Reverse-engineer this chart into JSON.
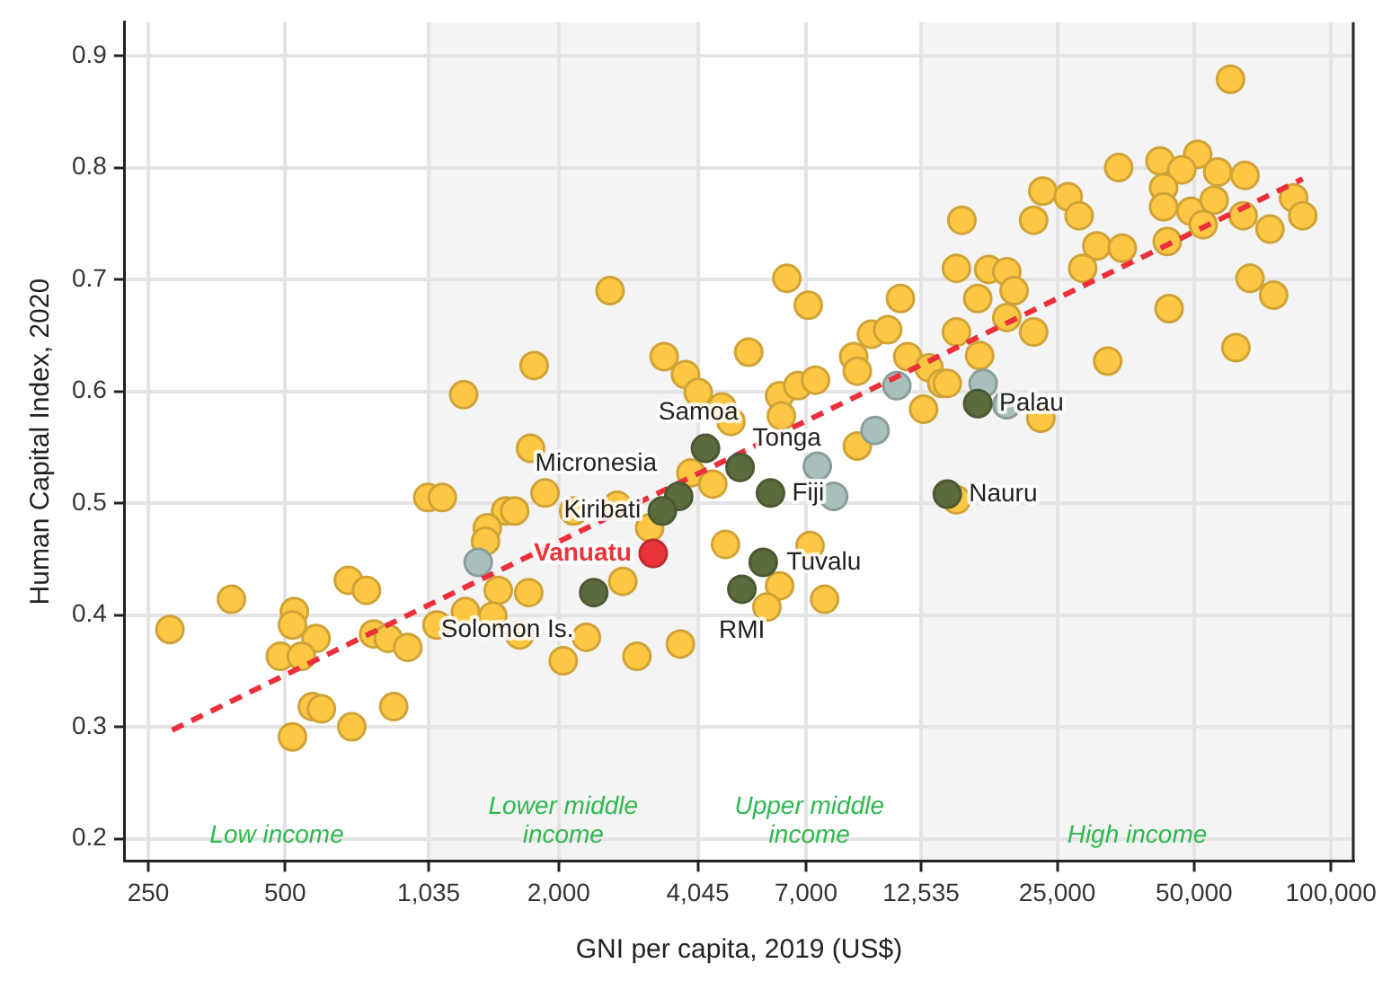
{
  "chart_data": {
    "type": "scatter",
    "xlabel": "GNI per capita, 2019 (US$)",
    "ylabel": "Human Capital Index, 2020",
    "log": "x",
    "grid": true,
    "legend": false,
    "marker": "circle",
    "xlim": [
      222,
      112000
    ],
    "ylim": [
      0.18,
      0.93
    ],
    "xticks": [
      {
        "value": 250,
        "label": "250"
      },
      {
        "value": 500,
        "label": "500"
      },
      {
        "value": 1035,
        "label": "1,035"
      },
      {
        "value": 2000,
        "label": "2,000"
      },
      {
        "value": 4045,
        "label": "4,045"
      },
      {
        "value": 7000,
        "label": "7,000"
      },
      {
        "value": 12535,
        "label": "12,535"
      },
      {
        "value": 25000,
        "label": "25,000"
      },
      {
        "value": 50000,
        "label": "50,000"
      },
      {
        "value": 100000,
        "label": "100,000"
      }
    ],
    "yticks": [
      0.2,
      0.3,
      0.4,
      0.5,
      0.6,
      0.7,
      0.8,
      0.9
    ],
    "bands": [
      {
        "axis": "x",
        "from": 1035,
        "to": 4045,
        "label": "Lower middle income",
        "color": "#f4f4f4"
      },
      {
        "axis": "x",
        "from": 12535,
        "to": 112000,
        "label": "High income",
        "color": "#f4f4f4"
      }
    ],
    "series": [
      {
        "color": "#fdc743",
        "x": [
          1236,
          1766,
          1734,
          2594,
          3412,
          3802,
          4055,
          5236,
          6353,
          7079,
          11298,
          9750,
          10590,
          8913,
          9078,
          11720,
          13060,
          13930,
          6124,
          6714,
          7345,
          6180,
          4571,
          4786,
          12700,
          9078,
          60130,
          34120,
          42070,
          50930,
          46990,
          56360,
          64710,
          42850,
          42850,
          49200,
          55340,
          52360,
          82790,
          86700,
          64120,
          73450,
          43650,
          23230,
          26420,
          22180,
          27930,
          15420,
          30550,
          34750,
          28440,
          15000,
          17660,
          19360,
          20090,
          16710,
          19360,
          22180,
          15000,
          16870,
          66370,
          74820,
          44060,
          32280,
          61800,
          14320,
          23010,
          279,
          381,
          689,
          755,
          524,
          519,
          585,
          488,
          543,
          783,
          843,
          931,
          574,
          601,
          519,
          701,
          867,
          1030,
          1109,
          1528,
          1393,
          1380,
          1472,
          1718,
          1247,
          1432,
          1079,
          1641,
          1866,
          1600,
          2301,
          2046,
          2972,
          3704,
          2767,
          2158,
          2690,
          3170,
          4656,
          6124,
          5741,
          7691,
          7145,
          15000,
          3908,
          4365
        ],
        "values": [
          0.597,
          0.623,
          0.549,
          0.69,
          0.631,
          0.615,
          0.599,
          0.635,
          0.701,
          0.677,
          0.683,
          0.651,
          0.655,
          0.631,
          0.618,
          0.631,
          0.621,
          0.607,
          0.596,
          0.605,
          0.61,
          0.578,
          0.586,
          0.573,
          0.584,
          0.551,
          0.879,
          0.8,
          0.806,
          0.812,
          0.798,
          0.796,
          0.793,
          0.782,
          0.765,
          0.761,
          0.771,
          0.749,
          0.773,
          0.757,
          0.757,
          0.745,
          0.734,
          0.779,
          0.774,
          0.753,
          0.757,
          0.753,
          0.73,
          0.728,
          0.71,
          0.71,
          0.709,
          0.707,
          0.69,
          0.683,
          0.666,
          0.653,
          0.653,
          0.632,
          0.701,
          0.686,
          0.674,
          0.627,
          0.639,
          0.607,
          0.576,
          0.387,
          0.414,
          0.431,
          0.422,
          0.403,
          0.391,
          0.379,
          0.363,
          0.363,
          0.383,
          0.379,
          0.371,
          0.318,
          0.316,
          0.291,
          0.3,
          0.318,
          0.505,
          0.505,
          0.493,
          0.478,
          0.466,
          0.422,
          0.42,
          0.403,
          0.399,
          0.391,
          0.382,
          0.509,
          0.493,
          0.38,
          0.359,
          0.363,
          0.374,
          0.43,
          0.493,
          0.498,
          0.478,
          0.463,
          0.426,
          0.407,
          0.414,
          0.462,
          0.503,
          0.527,
          0.517
        ]
      },
      {
        "color": "#a8c0bd",
        "x": [
          1330,
          7413,
          8054,
          9931,
          11090,
          17180,
          19360
        ],
        "values": [
          0.447,
          0.533,
          0.506,
          0.565,
          0.605,
          0.607,
          0.588
        ]
      },
      {
        "type": "line",
        "color": "#ec2f3b",
        "line_style": "dashed",
        "marker": "none",
        "x": [
          282,
          86700
        ],
        "values": [
          0.297,
          0.79
        ]
      },
      {
        "color": "#5b6b3d",
        "x": [
          4207,
          3673,
          3381,
          5012,
          5848,
          5636,
          5058,
          2388,
          14320,
          16710
        ],
        "values": [
          0.549,
          0.506,
          0.493,
          0.532,
          0.509,
          0.447,
          0.423,
          0.42,
          0.508,
          0.589
        ]
      },
      {
        "name": "Vanuatu",
        "color": "#e8343a",
        "x": [
          3228
        ],
        "values": [
          0.455
        ]
      }
    ],
    "annotations": [
      "Low income",
      "Upper middle income",
      {
        "text": "Samoa",
        "x": 4207,
        "y": 0.549
      },
      {
        "text": "Micronesia",
        "x": 3673,
        "y": 0.506
      },
      {
        "text": "Kiribati",
        "x": 3381,
        "y": 0.493
      },
      {
        "text": "Tonga",
        "x": 5012,
        "y": 0.532
      },
      {
        "text": "Fiji",
        "x": 5848,
        "y": 0.509
      },
      {
        "text": "Tuvalu",
        "x": 5636,
        "y": 0.447
      },
      {
        "text": "RMI",
        "x": 5058,
        "y": 0.423
      },
      {
        "text": "Solomon Is.",
        "x": 2388,
        "y": 0.42
      },
      {
        "text": "Nauru",
        "x": 14320,
        "y": 0.508
      },
      {
        "text": "Palau",
        "x": 16710,
        "y": 0.589
      }
    ]
  }
}
